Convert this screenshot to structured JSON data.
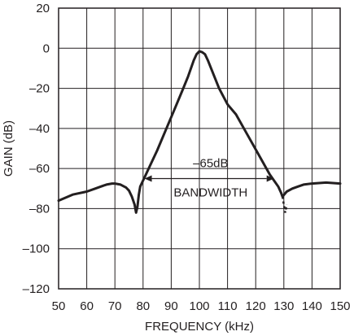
{
  "chart_data": {
    "type": "line",
    "xlabel": "FREQUENCY (kHz)",
    "ylabel": "GAIN (dB)",
    "xlim": [
      50,
      150
    ],
    "ylim": [
      -120,
      20
    ],
    "x_ticks": [
      50,
      60,
      70,
      80,
      90,
      100,
      110,
      120,
      130,
      140,
      150
    ],
    "y_ticks": [
      20,
      0,
      -20,
      -40,
      -60,
      -80,
      -100,
      -120
    ],
    "y_tick_labels": [
      "20",
      "0",
      "–20",
      "–40",
      "–60",
      "–80",
      "–100",
      "–120"
    ],
    "grid": true,
    "series": [
      {
        "style": "solid",
        "x": [
          50,
          55,
          60,
          63,
          65,
          67,
          69,
          70,
          72,
          74,
          75,
          76,
          77,
          77.5,
          78,
          78.5,
          79,
          80,
          81,
          82,
          85,
          88,
          91,
          94,
          96,
          98,
          99,
          100,
          101,
          102,
          103,
          105,
          107,
          110,
          113,
          117,
          121,
          125,
          128,
          129,
          129.5
        ],
        "values": [
          -76,
          -73,
          -71.5,
          -70,
          -69,
          -68,
          -67.5,
          -67.5,
          -68,
          -69.5,
          -71,
          -74,
          -78,
          -82,
          -79,
          -73,
          -69,
          -66,
          -63,
          -60,
          -51,
          -41,
          -31,
          -21,
          -14,
          -6,
          -3,
          -1.5,
          -2,
          -3,
          -6,
          -13,
          -20,
          -28,
          -33,
          -43,
          -53,
          -63,
          -69,
          -72,
          -74
        ]
      },
      {
        "style": "dashed",
        "x": [
          129.5,
          130,
          130.5,
          131
        ],
        "values": [
          -74,
          -78,
          -82,
          -78
        ]
      },
      {
        "style": "solid",
        "x": [
          129.5,
          131,
          133,
          135,
          137,
          140,
          145,
          150
        ],
        "values": [
          -74,
          -71.5,
          -70,
          -69,
          -68,
          -67.5,
          -67,
          -67.5
        ]
      }
    ],
    "annotations": [
      {
        "text": "–65dB",
        "x": 104,
        "y": -59
      },
      {
        "text": "BANDWIDTH",
        "x": 104,
        "y": -72
      }
    ]
  }
}
